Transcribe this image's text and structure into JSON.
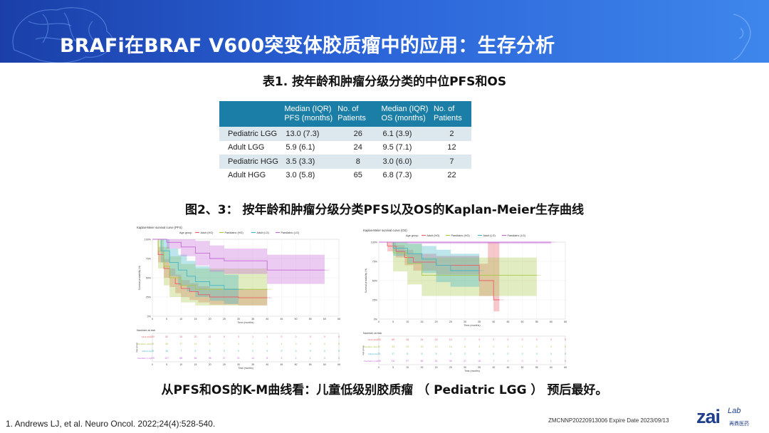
{
  "header": {
    "title": "BRAFi在BRAF V600突变体胶质瘤中的应用：生存分析"
  },
  "table": {
    "title": "表1. 按年龄和肿瘤分级分类的中位PFS和OS",
    "headers": [
      [
        "",
        ""
      ],
      [
        "Median (IQR)",
        "PFS (months)"
      ],
      [
        "No. of",
        "Patients"
      ],
      [
        "Median (IQR)",
        "OS (months)"
      ],
      [
        "No. of",
        "Patients"
      ]
    ],
    "rows": [
      {
        "group": "Pediatric LGG",
        "pfs": "13.0 (7.3)",
        "pfs_n": "26",
        "os": "6.1 (3.9)",
        "os_n": "2"
      },
      {
        "group": "Adult LGG",
        "pfs": "5.9 (6.1)",
        "pfs_n": "24",
        "os": "9.5 (7.1)",
        "os_n": "12"
      },
      {
        "group": "Pediatric HGG",
        "pfs": "3.5 (3.3)",
        "pfs_n": "8",
        "os": "3.0 (6.0)",
        "os_n": "7"
      },
      {
        "group": "Adult HGG",
        "pfs": "3.0 (5.8)",
        "pfs_n": "65",
        "os": "6.8 (7.3)",
        "os_n": "22"
      }
    ]
  },
  "figure": {
    "title": "图2、3： 按年龄和肿瘤分级分类PFS以及OS的Kaplan-Meier生存曲线"
  },
  "chart_data": [
    {
      "type": "line",
      "title": "Kaplan-Meier survival curve (PFS)",
      "legend_title": "Age group",
      "legend": [
        "Adult (HG)",
        "Paediatric (HG)",
        "Adult (LG)",
        "Paediatric (LG)"
      ],
      "legend_position": "top",
      "colors": [
        "#e8606a",
        "#a8c84a",
        "#43b5c8",
        "#c56ad6"
      ],
      "xlabel": "Time (months)",
      "ylabel": "Survival probability (%)",
      "xlim": [
        0,
        65
      ],
      "ylim": [
        0,
        100
      ],
      "xticks": [
        0,
        5,
        10,
        15,
        20,
        25,
        30,
        35,
        40,
        45,
        50,
        55,
        60,
        65
      ],
      "yticks": [
        "0%",
        "25%",
        "50%",
        "75%",
        "100%"
      ],
      "series": [
        {
          "name": "Adult (HG)",
          "x": [
            0,
            2,
            4,
            6,
            8,
            10,
            13,
            16,
            20,
            25,
            30,
            40
          ],
          "y": [
            100,
            80,
            62,
            50,
            42,
            36,
            32,
            28,
            25,
            25,
            24,
            24
          ],
          "ci_lo": [
            100,
            70,
            50,
            38,
            30,
            25,
            21,
            18,
            15,
            15,
            14,
            14
          ],
          "ci_hi": [
            100,
            90,
            74,
            62,
            54,
            47,
            43,
            39,
            36,
            36,
            35,
            35
          ]
        },
        {
          "name": "Paediatric (HG)",
          "x": [
            0,
            2,
            4,
            6,
            10,
            15,
            20,
            30,
            40
          ],
          "y": [
            100,
            85,
            65,
            50,
            40,
            35,
            35,
            35,
            35
          ],
          "ci_lo": [
            100,
            62,
            40,
            25,
            18,
            14,
            14,
            14,
            14
          ],
          "ci_hi": [
            100,
            100,
            90,
            78,
            68,
            62,
            62,
            62,
            62
          ]
        },
        {
          "name": "Adult (LG)",
          "x": [
            0,
            3,
            6,
            9,
            12,
            15,
            20,
            25,
            30
          ],
          "y": [
            100,
            85,
            70,
            60,
            52,
            45,
            40,
            35,
            35
          ],
          "ci_lo": [
            100,
            70,
            52,
            40,
            32,
            25,
            20,
            16,
            16
          ],
          "ci_hi": [
            100,
            100,
            88,
            80,
            72,
            65,
            60,
            54,
            54
          ]
        },
        {
          "name": "Paediatric (LG)",
          "x": [
            0,
            5,
            10,
            15,
            20,
            25,
            30,
            35,
            40,
            45,
            50,
            55,
            60
          ],
          "y": [
            100,
            96,
            90,
            82,
            75,
            72,
            72,
            72,
            60,
            60,
            60,
            60,
            60
          ],
          "ci_lo": [
            100,
            88,
            78,
            66,
            58,
            55,
            55,
            55,
            42,
            42,
            42,
            42,
            42
          ],
          "ci_hi": [
            100,
            100,
            100,
            98,
            92,
            88,
            88,
            88,
            80,
            80,
            80,
            80,
            80
          ]
        }
      ],
      "risk_table": {
        "title": "Number at risk",
        "ylabel": "Age group",
        "labels": [
          "Adult (HG)",
          "Paediatric (HG)",
          "Adult (LG)",
          "Paediatric (LG)"
        ],
        "rows": [
          [
            "100",
            "52",
            "34",
            "20",
            "11",
            "6",
            "3",
            "1",
            "1",
            "0",
            "0",
            "0",
            "0",
            "0"
          ],
          [
            "45",
            "30",
            "17",
            "13",
            "8",
            "7",
            "4",
            "2",
            "2",
            "1",
            "0",
            "0",
            "0",
            "0"
          ],
          [
            "25",
            "16",
            "7",
            "5",
            "5",
            "3",
            "0",
            "0",
            "0",
            "0",
            "0",
            "0",
            "0",
            "0"
          ],
          [
            "109",
            "107",
            "88",
            "56",
            "38",
            "27",
            "21",
            "14",
            "8",
            "3",
            "2",
            "1",
            "0",
            "0"
          ]
        ]
      }
    },
    {
      "type": "line",
      "title": "Kaplan-Meier survival curve (OS)",
      "legend_title": "Age group",
      "legend": [
        "Adult (HG)",
        "Paediatric (HG)",
        "Adult (LG)",
        "Paediatric (LG)"
      ],
      "legend_position": "top",
      "colors": [
        "#e8606a",
        "#a8c84a",
        "#43b5c8",
        "#c56ad6"
      ],
      "xlabel": "Time (months)",
      "ylabel": "Survival probability (%)",
      "xlim": [
        0,
        65
      ],
      "ylim": [
        0,
        100
      ],
      "xticks": [
        0,
        5,
        10,
        15,
        20,
        25,
        30,
        35,
        40,
        45,
        50,
        55,
        60,
        65
      ],
      "yticks": [
        "0%",
        "25%",
        "50%",
        "75%",
        "100%"
      ],
      "series": [
        {
          "name": "Adult (HG)",
          "x": [
            0,
            3,
            6,
            9,
            12,
            20,
            30,
            35,
            38,
            40,
            42
          ],
          "y": [
            100,
            95,
            88,
            80,
            74,
            70,
            70,
            50,
            50,
            25,
            25
          ],
          "ci_lo": [
            100,
            88,
            80,
            70,
            63,
            58,
            58,
            30,
            30,
            10,
            10
          ],
          "ci_hi": [
            100,
            100,
            96,
            90,
            85,
            82,
            82,
            72,
            100,
            100,
            100
          ]
        },
        {
          "name": "Paediatric (HG)",
          "x": [
            0,
            5,
            10,
            15,
            20,
            30,
            40,
            45,
            50,
            55
          ],
          "y": [
            100,
            86,
            72,
            57,
            57,
            57,
            57,
            57,
            57,
            57
          ],
          "ci_lo": [
            100,
            62,
            45,
            30,
            30,
            30,
            30,
            30,
            30,
            30
          ],
          "ci_hi": [
            100,
            100,
            98,
            80,
            80,
            80,
            80,
            80,
            80,
            80
          ]
        },
        {
          "name": "Adult (LG)",
          "x": [
            0,
            5,
            10,
            15,
            20,
            25,
            30,
            35
          ],
          "y": [
            100,
            92,
            85,
            78,
            70,
            63,
            63,
            63
          ],
          "ci_lo": [
            100,
            82,
            72,
            60,
            48,
            42,
            42,
            42
          ],
          "ci_hi": [
            100,
            100,
            98,
            95,
            90,
            85,
            85,
            85
          ]
        },
        {
          "name": "Paediatric (LG)",
          "x": [
            0,
            10,
            20,
            30,
            40,
            50,
            55,
            60
          ],
          "y": [
            100,
            100,
            100,
            100,
            100,
            100,
            100,
            100
          ],
          "ci_lo": [
            100,
            98,
            98,
            98,
            98,
            98,
            98,
            98
          ],
          "ci_hi": [
            100,
            100,
            100,
            100,
            100,
            100,
            100,
            100
          ]
        }
      ],
      "risk_table": {
        "title": "Number at risk",
        "ylabel": "Age group",
        "labels": [
          "Adult (HG)",
          "Paediatric (HG)",
          "Adult (LG)",
          "Paediatric (LG)"
        ],
        "rows": [
          [
            "100",
            "69",
            "45",
            "24",
            "20",
            "13",
            "7",
            "3",
            "2",
            "0",
            "0",
            "0",
            "0",
            "0"
          ],
          [
            "40",
            "33",
            "22",
            "13",
            "10",
            "13",
            "6",
            "3",
            "2",
            "2",
            "1",
            "0",
            "0",
            "0"
          ],
          [
            "25",
            "17",
            "8",
            "5",
            "5",
            "3",
            "2",
            "0",
            "0",
            "0",
            "0",
            "0",
            "0",
            "0"
          ],
          [
            "109",
            "111",
            "97",
            "68",
            "51",
            "36",
            "27",
            "18",
            "7",
            "0",
            "0",
            "0",
            "1",
            "0"
          ]
        ]
      }
    }
  ],
  "conclusion": "从PFS和OS的K-M曲线看：儿童低级别胶质瘤 （ Pediatric LGG ） 预后最好。",
  "footer": {
    "reference": "1.   Andrews LJ, et al. Neuro Oncol. 2022;24(4):528-540.",
    "code": "ZMCNNP20220913006 Expire Date 2023/09/13",
    "logo_main": "zai",
    "logo_sup": "Lab",
    "logo_sub": "再鼎医药"
  }
}
